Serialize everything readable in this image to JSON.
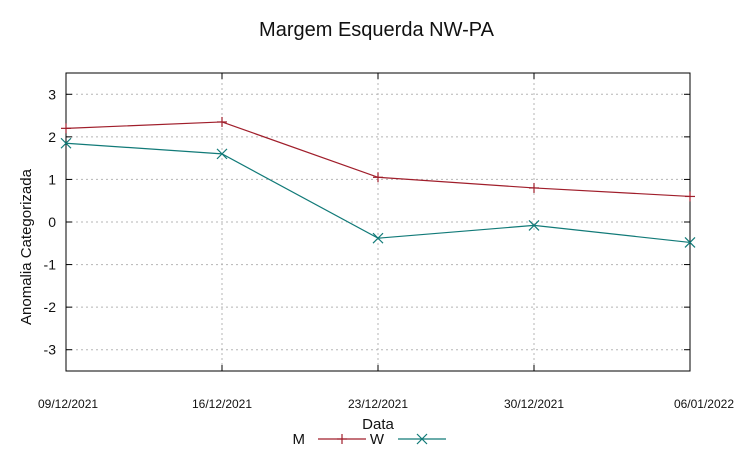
{
  "chart_data": {
    "type": "line",
    "title": "Margem Esquerda NW-PA",
    "xlabel": "Data",
    "ylabel": "Anomalia Categorizada",
    "categories": [
      "09/12/2021",
      "16/12/2021",
      "23/12/2021",
      "30/12/2021",
      "06/01/2022"
    ],
    "yticks": [
      -3,
      -2,
      -1,
      0,
      1,
      2,
      3
    ],
    "ylim": [
      -3.5,
      3.5
    ],
    "grid": true,
    "legend_position": "bottom-center",
    "series": [
      {
        "name": "M",
        "color": "#a01e2b",
        "marker": "plus",
        "values": [
          2.2,
          2.35,
          1.05,
          0.8,
          0.6
        ]
      },
      {
        "name": "W",
        "color": "#117a78",
        "marker": "x",
        "values": [
          1.85,
          1.6,
          -0.38,
          -0.08,
          -0.48
        ]
      }
    ]
  }
}
